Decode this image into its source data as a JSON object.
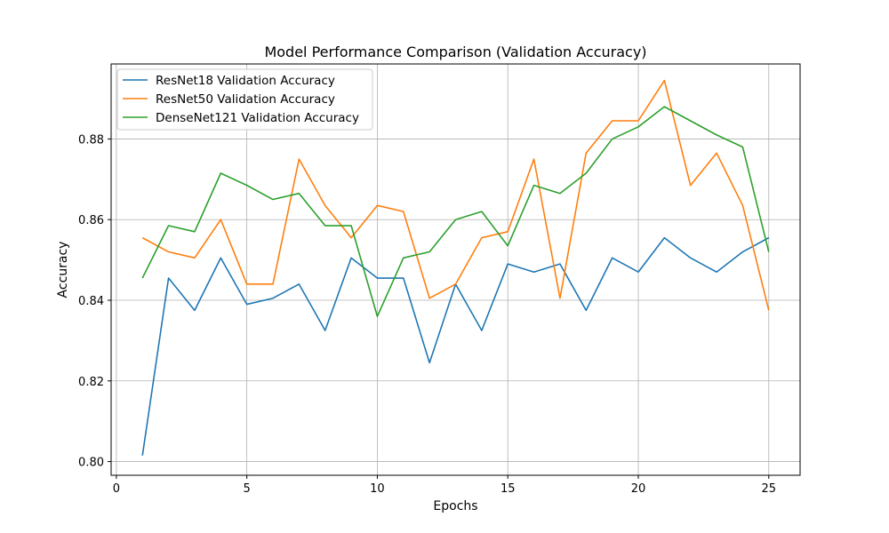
{
  "chart_data": {
    "type": "line",
    "title": "Model Performance Comparison (Validation Accuracy)",
    "xlabel": "Epochs",
    "ylabel": "Accuracy",
    "xlim": [
      -0.2,
      26.2
    ],
    "ylim": [
      0.7966,
      0.8986
    ],
    "xticks": [
      0,
      5,
      10,
      15,
      20,
      25
    ],
    "yticks": [
      0.8,
      0.82,
      0.84,
      0.86,
      0.88
    ],
    "ytick_labels": [
      "0.80",
      "0.82",
      "0.84",
      "0.86",
      "0.88"
    ],
    "grid": true,
    "legend_position": "upper-left",
    "x": [
      1,
      2,
      3,
      4,
      5,
      6,
      7,
      8,
      9,
      10,
      11,
      12,
      13,
      14,
      15,
      16,
      17,
      18,
      19,
      20,
      21,
      22,
      23,
      24,
      25
    ],
    "series": [
      {
        "name": "ResNet18 Validation Accuracy",
        "color": "#1f77b4",
        "values": [
          0.8015,
          0.8455,
          0.8375,
          0.8505,
          0.839,
          0.8405,
          0.844,
          0.8325,
          0.8505,
          0.8455,
          0.8455,
          0.8245,
          0.844,
          0.8325,
          0.849,
          0.847,
          0.849,
          0.8375,
          0.8505,
          0.847,
          0.8555,
          0.8505,
          0.847,
          0.852,
          0.8555
        ]
      },
      {
        "name": "ResNet50 Validation Accuracy",
        "color": "#ff7f0e",
        "values": [
          0.8555,
          0.852,
          0.8505,
          0.86,
          0.844,
          0.844,
          0.875,
          0.8635,
          0.8555,
          0.8635,
          0.862,
          0.8405,
          0.844,
          0.8555,
          0.857,
          0.875,
          0.8405,
          0.8765,
          0.8845,
          0.8845,
          0.8945,
          0.8685,
          0.8765,
          0.8635,
          0.8375
        ]
      },
      {
        "name": "DenseNet121 Validation Accuracy",
        "color": "#2ca02c",
        "values": [
          0.8455,
          0.8585,
          0.857,
          0.8715,
          0.8685,
          0.865,
          0.8665,
          0.8585,
          0.8585,
          0.836,
          0.8505,
          0.852,
          0.86,
          0.862,
          0.8535,
          0.8685,
          0.8665,
          0.8715,
          0.88,
          0.883,
          0.888,
          0.8845,
          0.881,
          0.878,
          0.852
        ]
      }
    ]
  }
}
